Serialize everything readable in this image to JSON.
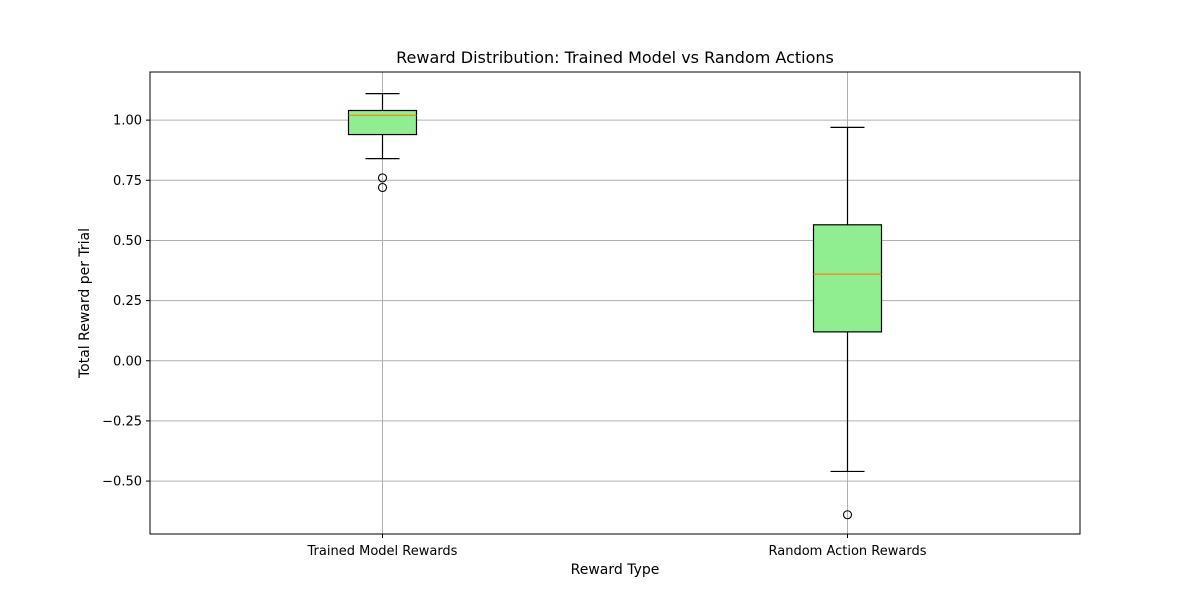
{
  "chart_data": {
    "type": "box",
    "title": "Reward Distribution: Trained Model vs Random Actions",
    "xlabel": "Reward Type",
    "ylabel": "Total Reward per Trial",
    "categories": [
      "Trained Model Rewards",
      "Random Action Rewards"
    ],
    "boxes": [
      {
        "category": "Trained Model Rewards",
        "whisker_low": 0.84,
        "q1": 0.94,
        "median": 1.02,
        "q3": 1.04,
        "whisker_high": 1.11,
        "outliers": [
          0.76,
          0.72
        ]
      },
      {
        "category": "Random Action Rewards",
        "whisker_low": -0.46,
        "q1": 0.12,
        "median": 0.36,
        "q3": 0.565,
        "whisker_high": 0.97,
        "outliers": [
          -0.64
        ]
      }
    ],
    "ylim": [
      -0.72,
      1.2
    ],
    "yticks": [
      -0.5,
      -0.25,
      0.0,
      0.25,
      0.5,
      0.75,
      1.0
    ],
    "ytick_labels": [
      "−0.50",
      "−0.25",
      "0.00",
      "0.25",
      "0.50",
      "0.75",
      "1.00"
    ],
    "grid": true,
    "colors": {
      "box_fill": "#90ee90",
      "median": "#ff7f0e",
      "grid": "#b0b0b0",
      "edge": "#000000"
    }
  }
}
